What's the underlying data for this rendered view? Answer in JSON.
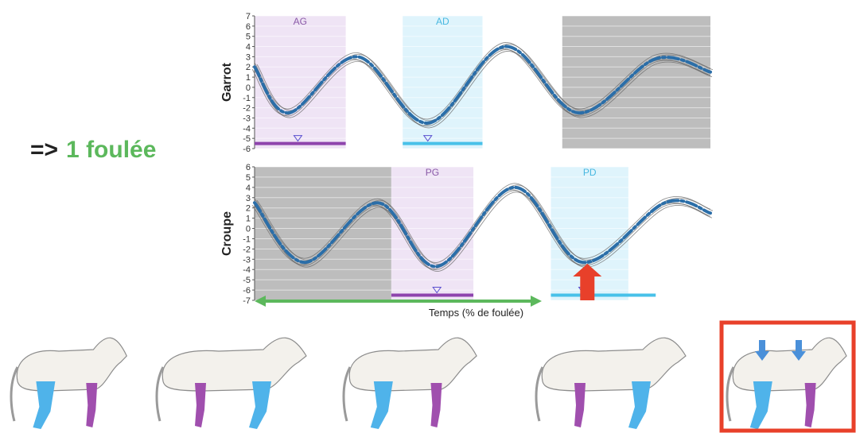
{
  "headline": {
    "arrow": "=>",
    "text": "1 foulée"
  },
  "colors": {
    "dark_shade": "#bdbdbd",
    "purple_shade": "#efe4f5",
    "cyan_shade": "#dff4fc",
    "purple": "#8e44ad",
    "cyan": "#48c1e9",
    "mean_line": "#2b6ea8",
    "trace": "#6b6b6b",
    "span_arrow": "#5cb85c",
    "red_arrow": "#e8402a",
    "blue_arrow": "#4a90d9",
    "leg_blue": "#4fb3ea",
    "leg_purple": "#a04fae"
  },
  "chart_data": [
    {
      "type": "line",
      "ylabel": "Garrot",
      "xlabel": "",
      "ylim": [
        -6,
        7
      ],
      "yticks": [
        7,
        6,
        5,
        4,
        3,
        2,
        1,
        0,
        -1,
        -2,
        -3,
        -4,
        -5,
        -6
      ],
      "xlim": [
        0,
        100
      ],
      "grid": true,
      "bands": [
        {
          "label": "AG",
          "x": [
            0,
            20
          ],
          "shade": "purple"
        },
        {
          "label": "AD",
          "x": [
            32.5,
            50
          ],
          "shade": "cyan"
        },
        {
          "label": "",
          "x": [
            67.5,
            100
          ],
          "shade": "dark"
        }
      ],
      "stance_bars": [
        {
          "x": [
            0,
            20
          ],
          "y": -5.5,
          "color": "purple",
          "marker_x": 9.5
        },
        {
          "x": [
            32.5,
            50
          ],
          "y": -5.5,
          "color": "cyan",
          "marker_x": 38
        }
      ],
      "series": [
        {
          "values": [
            {
              "x": 0,
              "y": 2.0
            },
            {
              "x": 7.5,
              "y": -2.5
            },
            {
              "x": 22.5,
              "y": 3.0
            },
            {
              "x": 38,
              "y": -3.5
            },
            {
              "x": 55,
              "y": 4.0
            },
            {
              "x": 71,
              "y": -2.5
            },
            {
              "x": 88,
              "y": 2.8
            },
            {
              "x": 100,
              "y": 1.5
            }
          ]
        }
      ]
    },
    {
      "type": "line",
      "ylabel": "Croupe",
      "xlabel": "Temps (% de foulée)",
      "ylim": [
        -7,
        6
      ],
      "yticks": [
        6,
        5,
        4,
        3,
        2,
        1,
        0,
        -1,
        -2,
        -3,
        -4,
        -5,
        -6,
        -7
      ],
      "xlim": [
        0,
        100
      ],
      "grid": true,
      "bands": [
        {
          "label": "",
          "x": [
            0,
            30
          ],
          "shade": "dark"
        },
        {
          "label": "PG",
          "x": [
            30,
            48
          ],
          "shade": "purple"
        },
        {
          "label": "PD",
          "x": [
            65,
            82
          ],
          "shade": "cyan"
        }
      ],
      "stance_bars": [
        {
          "x": [
            30,
            48
          ],
          "y": -6.5,
          "color": "purple",
          "marker_x": 40
        },
        {
          "x": [
            65,
            88
          ],
          "y": -6.5,
          "color": "cyan",
          "marker_x": 72
        }
      ],
      "series": [
        {
          "values": [
            {
              "x": 0,
              "y": 2.5
            },
            {
              "x": 11,
              "y": -3.3
            },
            {
              "x": 27,
              "y": 2.5
            },
            {
              "x": 40,
              "y": -3.7
            },
            {
              "x": 57,
              "y": 4.0
            },
            {
              "x": 72,
              "y": -3.3
            },
            {
              "x": 90,
              "y": 2.5
            },
            {
              "x": 100,
              "y": 1.5
            }
          ]
        }
      ],
      "markers": {
        "red_arrow_x": 73,
        "span_arrow_x": [
          0,
          63
        ]
      }
    }
  ],
  "horses": [
    {
      "name": "horse-1"
    },
    {
      "name": "horse-2"
    },
    {
      "name": "horse-3"
    },
    {
      "name": "horse-4"
    },
    {
      "name": "horse-5",
      "highlighted": true
    }
  ]
}
